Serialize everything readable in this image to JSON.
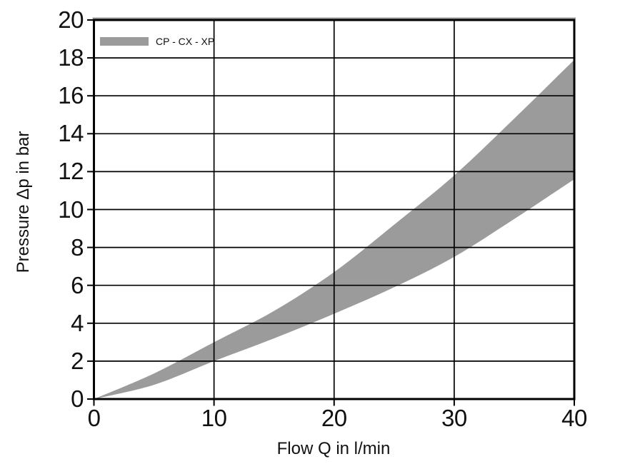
{
  "chart_data": {
    "type": "area",
    "title": "",
    "xlabel": "Flow Q in l/min",
    "ylabel": "Pressure Δp in bar",
    "xlim": [
      0,
      40
    ],
    "ylim": [
      0,
      20
    ],
    "x_ticks": [
      0,
      10,
      20,
      30,
      40
    ],
    "y_ticks": [
      0,
      2,
      4,
      6,
      8,
      10,
      12,
      14,
      16,
      18,
      20
    ],
    "grid": true,
    "legend": {
      "label": "CP - CX - XP",
      "position": "top-left"
    },
    "band": {
      "name": "CP - CX - XP",
      "x": [
        0,
        5,
        10,
        15,
        20,
        25,
        30,
        35,
        40
      ],
      "upper": [
        0,
        1.35,
        3.0,
        4.65,
        6.7,
        9.2,
        11.8,
        14.8,
        17.9
      ],
      "lower": [
        0,
        0.75,
        2.0,
        3.2,
        4.5,
        5.9,
        7.5,
        9.5,
        11.6
      ]
    }
  },
  "colors": {
    "band": "#9b9b9b",
    "axis": "#000000",
    "grid": "#000000",
    "text": "#111111",
    "background": "#ffffff",
    "top_accent": "#9b9b9b"
  }
}
